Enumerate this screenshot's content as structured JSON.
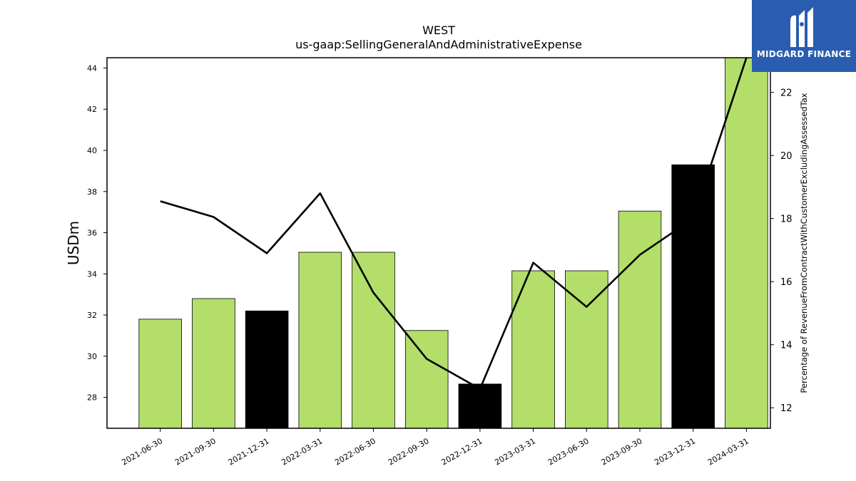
{
  "chart_data": {
    "type": "bar",
    "title": "WEST",
    "subtitle": "us-gaap:SellingGeneralAndAdministrativeExpense",
    "ylabel": "USDm",
    "y2label": "Percentage of RevenueFromContractWithCustomerExcludingAssessedTax",
    "categories": [
      "2021-06-30",
      "2021-09-30",
      "2021-12-31",
      "2022-03-31",
      "2022-06-30",
      "2022-09-30",
      "2022-12-31",
      "2023-03-31",
      "2023-06-30",
      "2023-09-30",
      "2023-12-31",
      "2024-03-31"
    ],
    "series": [
      {
        "type": "bar",
        "axis": "left",
        "values": [
          31.8,
          32.8,
          32.2,
          35.05,
          35.05,
          31.25,
          28.65,
          34.15,
          34.15,
          37.05,
          39.3,
          44.5
        ],
        "colors": [
          "#b3de69",
          "#b3de69",
          "#000000",
          "#b3de69",
          "#b3de69",
          "#b3de69",
          "#000000",
          "#b3de69",
          "#b3de69",
          "#b3de69",
          "#000000",
          "#b3de69"
        ]
      },
      {
        "type": "line",
        "axis": "right",
        "color": "#000000",
        "values": [
          18.55,
          18.05,
          16.9,
          18.8,
          15.65,
          13.55,
          12.6,
          16.6,
          15.2,
          16.85,
          18.0,
          23.1
        ]
      }
    ],
    "ylim": [
      26.5,
      44.5
    ],
    "yticks": [
      28,
      30,
      32,
      34,
      36,
      38,
      40,
      42,
      44
    ],
    "y2lim": [
      11.35,
      23.1
    ],
    "y2ticks": [
      12,
      14,
      16,
      18,
      20,
      22
    ],
    "grid": false,
    "legend": "none"
  },
  "logo": {
    "text": "MIDGARD FINANCE",
    "bg": "#2a5db0"
  }
}
